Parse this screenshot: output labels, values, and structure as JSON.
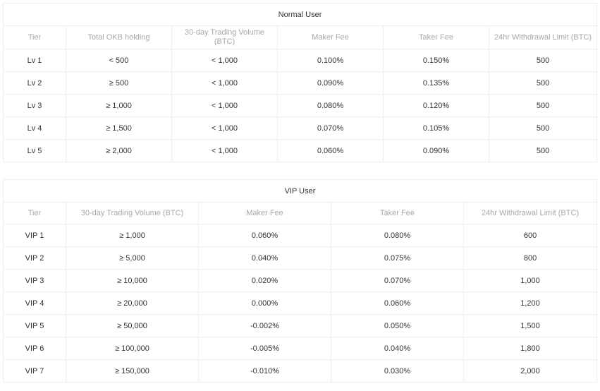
{
  "normal": {
    "title": "Normal User",
    "headers": [
      "Tier",
      "Total OKB holding",
      "30-day Trading Volume (BTC)",
      "Maker Fee",
      "Taker Fee",
      "24hr Withdrawal Limit (BTC)"
    ],
    "rows": [
      [
        "Lv 1",
        "< 500",
        "< 1,000",
        "0.100%",
        "0.150%",
        "500"
      ],
      [
        "Lv 2",
        "≥ 500",
        "< 1,000",
        "0.090%",
        "0.135%",
        "500"
      ],
      [
        "Lv 3",
        "≥ 1,000",
        "< 1,000",
        "0.080%",
        "0.120%",
        "500"
      ],
      [
        "Lv 4",
        "≥ 1,500",
        "< 1,000",
        "0.070%",
        "0.105%",
        "500"
      ],
      [
        "Lv 5",
        "≥ 2,000",
        "< 1,000",
        "0.060%",
        "0.090%",
        "500"
      ]
    ]
  },
  "vip": {
    "title": "VIP User",
    "headers": [
      "Tier",
      "30-day Trading Volume (BTC)",
      "Maker Fee",
      "Taker Fee",
      "24hr Withdrawal Limit (BTC)"
    ],
    "rows": [
      [
        "VIP 1",
        "≥ 1,000",
        "0.060%",
        "0.080%",
        "600"
      ],
      [
        "VIP 2",
        "≥ 5,000",
        "0.040%",
        "0.075%",
        "800"
      ],
      [
        "VIP 3",
        "≥ 10,000",
        "0.020%",
        "0.070%",
        "1,000"
      ],
      [
        "VIP 4",
        "≥ 20,000",
        "0.000%",
        "0.060%",
        "1,200"
      ],
      [
        "VIP 5",
        "≥ 50,000",
        "-0.002%",
        "0.050%",
        "1,500"
      ],
      [
        "VIP 6",
        "≥ 100,000",
        "-0.005%",
        "0.040%",
        "1,800"
      ],
      [
        "VIP 7",
        "≥ 150,000",
        "-0.010%",
        "0.030%",
        "2,000"
      ]
    ]
  }
}
